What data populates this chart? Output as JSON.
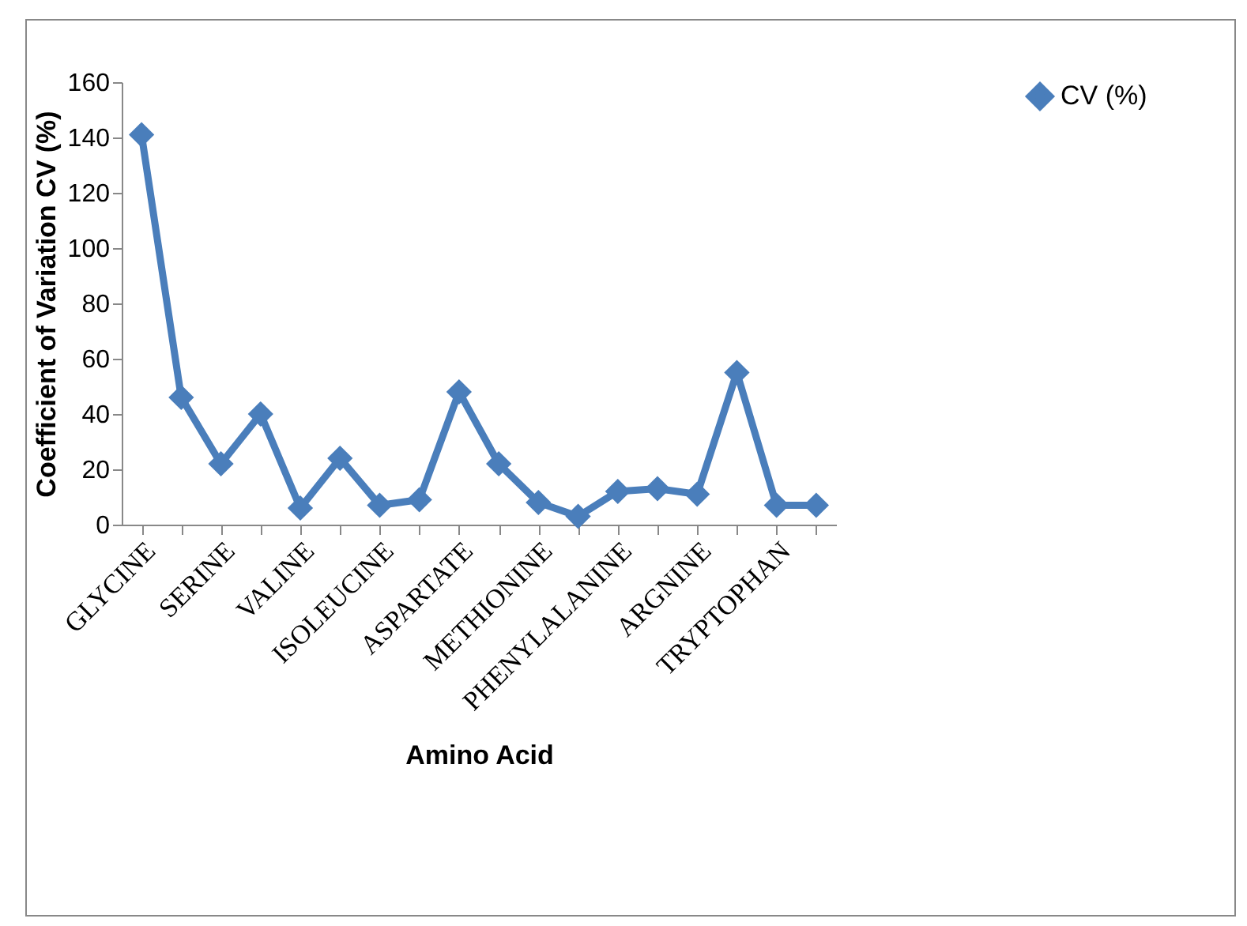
{
  "chart_data": {
    "type": "line",
    "xlabel": "Amino Acid",
    "ylabel": "Coefficient of Variation CV (%)",
    "categories": [
      "GLYCINE",
      null,
      "SERINE",
      null,
      "VALINE",
      null,
      "ISOLEUCINE",
      null,
      "ASPARTATE",
      null,
      "METHIONINE",
      null,
      "PHENYLALANINE",
      null,
      "ARGNINE",
      null,
      "TRYPTOPHAN",
      null
    ],
    "series": [
      {
        "name": "CV (%)",
        "color": "#4a7ebb",
        "values": [
          141,
          46,
          22,
          40,
          6,
          24,
          7,
          9,
          48,
          22,
          8,
          3,
          12,
          13,
          11,
          55,
          7,
          7
        ]
      }
    ],
    "ylim": [
      0,
      160
    ],
    "yticks": [
      0,
      20,
      40,
      60,
      80,
      100,
      120,
      140,
      160
    ],
    "grid": false,
    "legend": "right",
    "marker": "diamond",
    "line_style": "solid"
  }
}
